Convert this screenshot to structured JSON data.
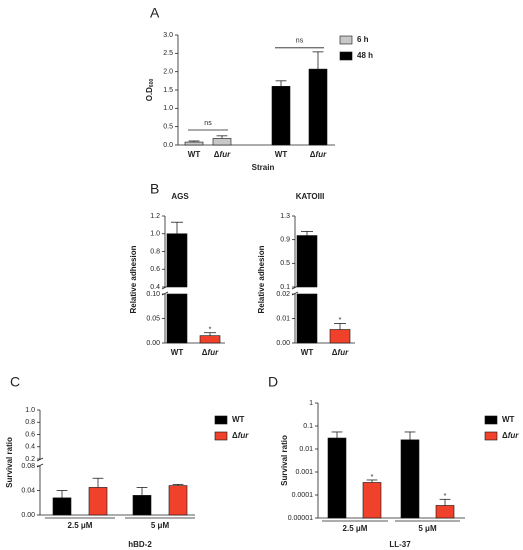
{
  "chart_data": [
    {
      "type": "bar",
      "panel": "A",
      "ylabel": "O.D",
      "ylabel_subscript": "600",
      "xlabel": "Strain",
      "categories": [
        "WT",
        "Δfur",
        "WT",
        "Δfur"
      ],
      "series": [
        {
          "name": "6 h",
          "color": "#c8c8c8",
          "values": [
            0.08,
            0.18,
            null,
            null
          ],
          "errors": [
            0.03,
            0.07,
            null,
            null
          ]
        },
        {
          "name": "48 h",
          "color": "#000000",
          "values": [
            null,
            null,
            1.6,
            2.07
          ],
          "errors": [
            null,
            null,
            0.15,
            0.47
          ]
        }
      ],
      "ylim": [
        0,
        3
      ],
      "yticks": [
        {
          "value": 0,
          "label": "0.0"
        },
        0.5,
        {
          "value": 1,
          "label": "1.0"
        },
        1.5,
        {
          "value": 2,
          "label": "2.0"
        },
        2.5,
        {
          "value": 3,
          "label": "3.0"
        }
      ],
      "annotations": [
        {
          "text": "ns",
          "from": 0,
          "to": 1,
          "y": 0.41
        },
        {
          "text": "ns",
          "from": 2,
          "to": 3,
          "y": 2.65
        }
      ],
      "legend": "right"
    },
    {
      "type": "bar",
      "panel": "B",
      "title": "AGS",
      "ylabel": "Relative adhesion",
      "categories": [
        "WT",
        "Δfur"
      ],
      "values": [
        1.0,
        0.015
      ],
      "errors": [
        0.13,
        0.006
      ],
      "colors": [
        "#000000",
        "#f0412a"
      ],
      "segments": [
        {
          "ylim": [
            0,
            0.1
          ],
          "yticks": [
            {
              "value": 0,
              "label": "0.00"
            },
            0.05,
            {
              "value": 0.1,
              "label": "0.10"
            }
          ]
        },
        {
          "ylim": [
            0.4,
            1.2
          ],
          "yticks": [
            0.4,
            0.6,
            0.8,
            {
              "value": 1,
              "label": "1.0"
            },
            1.2
          ]
        }
      ],
      "significance": [
        {
          "text": "*",
          "index": 1
        }
      ]
    },
    {
      "type": "bar",
      "title": "KATOIII",
      "ylabel": "Relative adhesion",
      "categories": [
        "WT",
        "Δfur"
      ],
      "values": [
        0.97,
        0.0055
      ],
      "errors": [
        0.07,
        0.0025
      ],
      "colors": [
        "#000000",
        "#f0412a"
      ],
      "segments": [
        {
          "ylim": [
            0,
            0.02
          ],
          "yticks": [
            {
              "value": 0,
              "label": "0.00"
            },
            0.01,
            0.02
          ]
        },
        {
          "ylim": [
            0.1,
            1.3
          ],
          "yticks": [
            0.1,
            0.5,
            0.9,
            1.3
          ]
        }
      ],
      "significance": [
        {
          "text": "*",
          "index": 1
        }
      ]
    },
    {
      "type": "bar",
      "panel": "C",
      "ylabel": "Survival ratio",
      "xlabel": "hBD-2",
      "groups": [
        "2.5 μM",
        "5 μM"
      ],
      "series": [
        {
          "name": "WT",
          "color": "#000000",
          "values": [
            0.028,
            0.032
          ],
          "errors": [
            0.012,
            0.013
          ]
        },
        {
          "name": "Δfur",
          "color": "#f0412a",
          "values": [
            0.045,
            0.048
          ],
          "errors": [
            0.015,
            0.002
          ]
        }
      ],
      "segments": [
        {
          "ylim": [
            0,
            0.08
          ],
          "yticks": [
            {
              "value": 0,
              "label": "0.00"
            },
            0.04,
            0.08
          ]
        },
        {
          "ylim": [
            0.2,
            1.0
          ],
          "yticks": [
            0.2,
            0.4,
            0.6,
            0.8,
            {
              "value": 1,
              "label": "1.0"
            }
          ]
        }
      ],
      "legend": "right"
    },
    {
      "type": "bar",
      "panel": "D",
      "ylabel": "Survival ratio",
      "xlabel": "LL-37",
      "log_scale": true,
      "groups": [
        "2.5 μM",
        "5 μM"
      ],
      "series": [
        {
          "name": "WT",
          "color": "#000000",
          "values": [
            0.03,
            0.025
          ],
          "errors": [
            0.025,
            0.03
          ]
        },
        {
          "name": "Δfur",
          "color": "#f0412a",
          "values": [
            0.00035,
            3.5e-05
          ],
          "errors": [
            0.0001,
            3e-05
          ]
        }
      ],
      "ylim": [
        1e-05,
        1
      ],
      "yticks": [
        1e-05,
        0.0001,
        0.001,
        0.01,
        0.1,
        1
      ],
      "significance": [
        {
          "text": "*",
          "series": 1,
          "index": 0
        },
        {
          "text": "*",
          "series": 1,
          "index": 1
        }
      ],
      "legend": "right"
    }
  ]
}
